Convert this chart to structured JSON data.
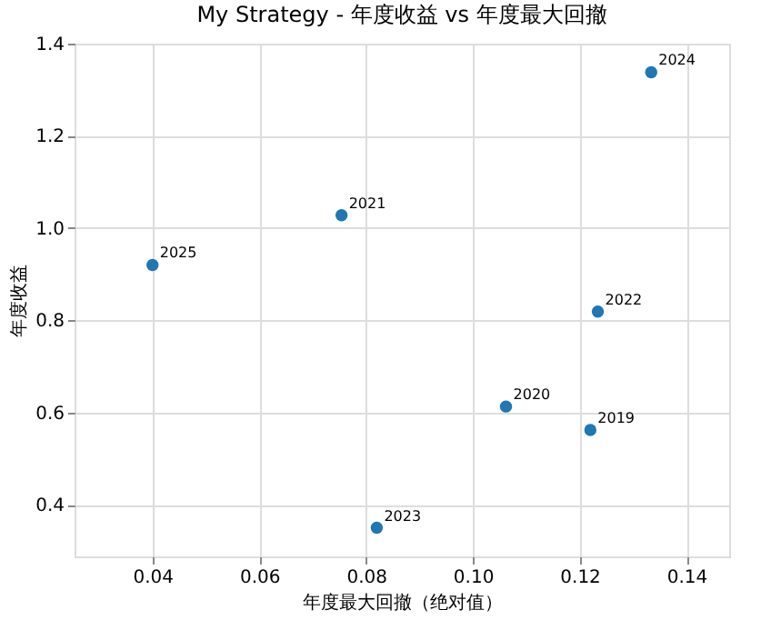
{
  "chart_data": {
    "type": "scatter",
    "title": "My Strategy - 年度收益 vs 年度最大回撤",
    "xlabel": "年度最大回撤（绝对值）",
    "ylabel": "年度收益",
    "x": [
      0.122,
      0.1062,
      0.0754,
      0.1234,
      0.082,
      0.1334,
      0.04
    ],
    "series": [
      {
        "color": "#1f77b4",
        "values": [
          0.562,
          0.613,
          1.028,
          0.819,
          0.35,
          1.338,
          0.92
        ]
      }
    ],
    "annotations": [
      {
        "text": "2019",
        "x": 0.122,
        "y": 0.562
      },
      {
        "text": "2020",
        "x": 0.1062,
        "y": 0.613
      },
      {
        "text": "2021",
        "x": 0.0754,
        "y": 1.028
      },
      {
        "text": "2022",
        "x": 0.1234,
        "y": 0.819
      },
      {
        "text": "2023",
        "x": 0.082,
        "y": 0.35
      },
      {
        "text": "2024",
        "x": 0.1334,
        "y": 1.338
      },
      {
        "text": "2025",
        "x": 0.04,
        "y": 0.92
      }
    ],
    "xlim": [
      0.0254,
      0.148
    ],
    "ylim": [
      0.288,
      1.4
    ],
    "xticks": [
      0.04,
      0.06,
      0.08,
      {
        "value": 0.1,
        "label": "0.10"
      },
      0.12,
      0.14
    ],
    "yticks": [
      0.4,
      0.6,
      0.8,
      {
        "value": 1.0,
        "label": "1.0"
      },
      1.2,
      1.4
    ],
    "grid": true,
    "marker": "circle"
  }
}
